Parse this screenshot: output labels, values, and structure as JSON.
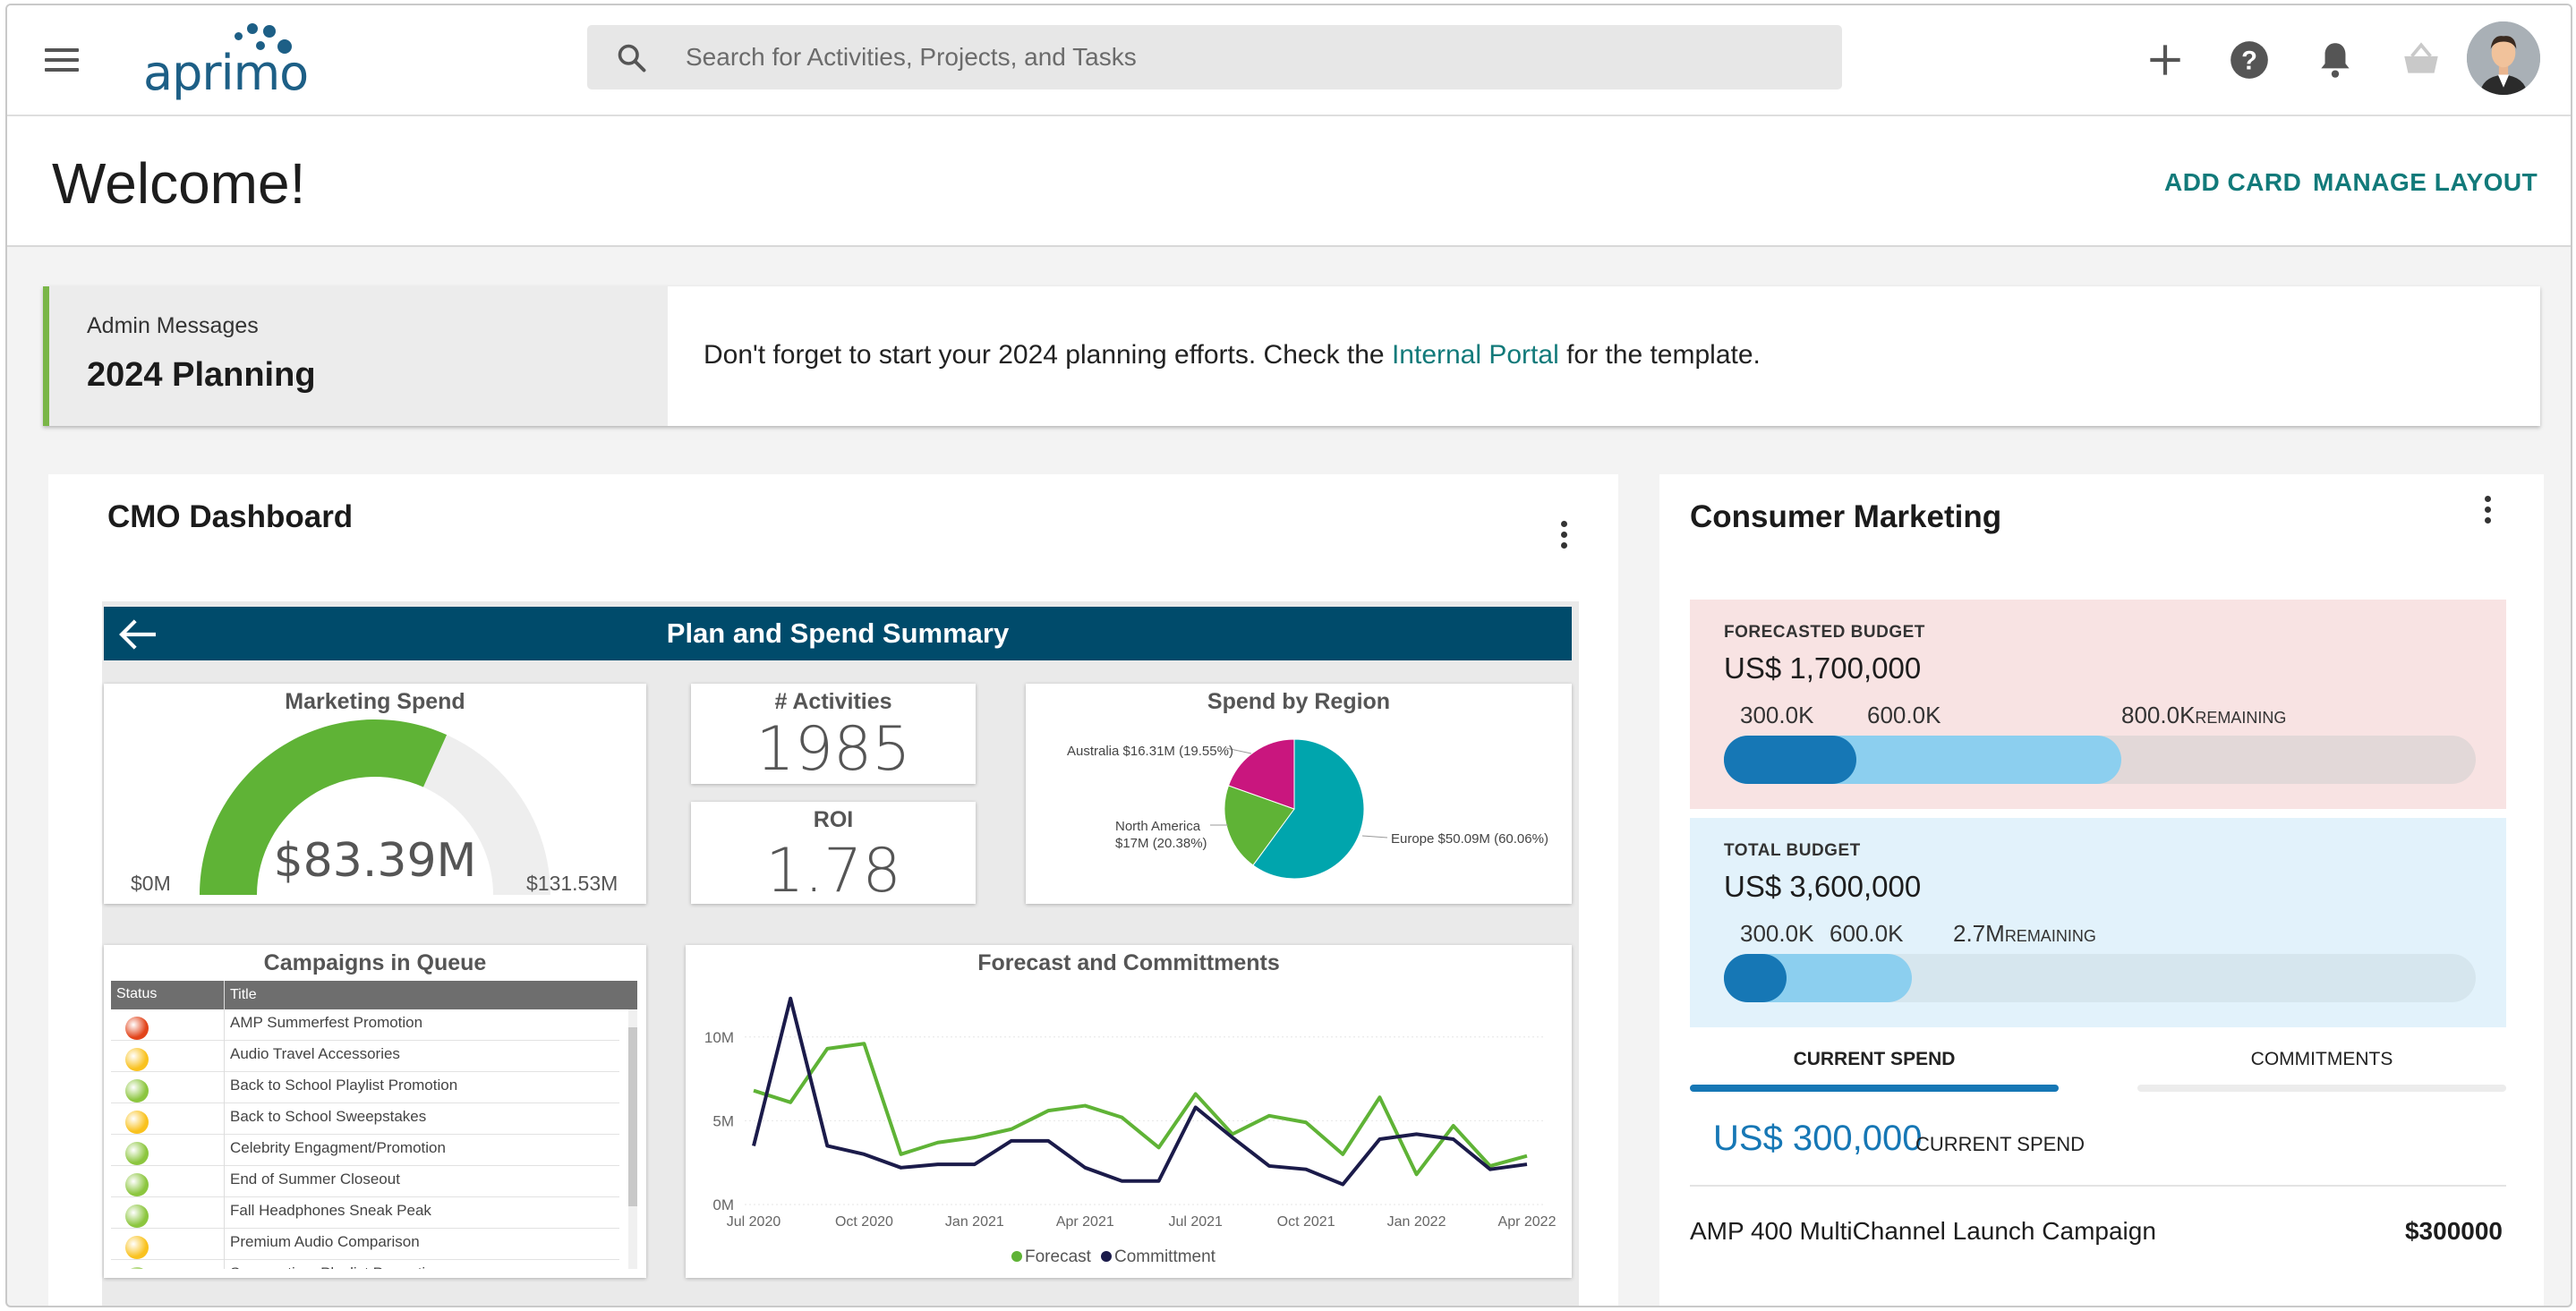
{
  "topbar": {
    "logo": "aprimo",
    "search_placeholder": "Search for Activities, Projects, and Tasks",
    "icons": [
      "menu-icon",
      "search-icon",
      "plus-icon",
      "help-icon",
      "bell-icon",
      "basket-icon",
      "avatar"
    ]
  },
  "header": {
    "title": "Welcome!",
    "add_card": "ADD CARD",
    "manage_layout": "MANAGE LAYOUT"
  },
  "admin": {
    "label": "Admin Messages",
    "title": "2024 Planning",
    "message_before": "Don't forget to start your 2024 planning efforts. Check the ",
    "link": "Internal Portal",
    "message_after": " for the template.",
    "accent": "#7ab648"
  },
  "cmo": {
    "title": "CMO Dashboard",
    "report": {
      "title": "Plan and Spend Summary",
      "header_color": "#004b6b",
      "marketing_spend": {
        "title": "Marketing Spend",
        "value": "$83.39M",
        "min": "$0M",
        "max": "$131.53M",
        "fraction": 0.634
      },
      "activities": {
        "title": "# Activities",
        "value": "1985"
      },
      "roi": {
        "title": "ROI",
        "value": "1.78"
      },
      "region": {
        "title": "Spend by Region",
        "slices": [
          {
            "label": "Europe $50.09M (60.06%)",
            "share": 60.06,
            "color": "#00a5ad"
          },
          {
            "label": "North America $17M (20.38%)",
            "share": 20.38,
            "color": "#5fb336"
          },
          {
            "label": "Australia $16.31M (19.55%)",
            "share": 19.55,
            "color": "#c9167e"
          }
        ],
        "label_north_america_line1": "North America",
        "label_north_america_line2": "$17M (20.38%)"
      },
      "campaigns": {
        "title": "Campaigns in Queue",
        "col_status": "Status",
        "col_title": "Title",
        "rows": [
          {
            "status": "red",
            "title": "AMP Summerfest Promotion"
          },
          {
            "status": "yellow",
            "title": "Audio Travel Accessories"
          },
          {
            "status": "green",
            "title": "Back to School Playlist Promotion"
          },
          {
            "status": "yellow",
            "title": "Back to School Sweepstakes"
          },
          {
            "status": "green",
            "title": "Celebrity Engagment/Promotion"
          },
          {
            "status": "green",
            "title": "End of Summer Closeout"
          },
          {
            "status": "green",
            "title": "Fall Headphones Sneak Peak"
          },
          {
            "status": "yellow",
            "title": "Premium Audio Comparison"
          },
          {
            "status": "green",
            "title": "Summertime Playlist Promotion"
          }
        ]
      }
    }
  },
  "chart_data": {
    "type": "line",
    "title": "Forecast and Committments",
    "x_ticks": [
      "Jul 2020",
      "Oct 2020",
      "Jan 2021",
      "Apr 2021",
      "Jul 2021",
      "Oct 2021",
      "Jan 2022",
      "Apr 2022"
    ],
    "y_ticks": [
      "0M",
      "5M",
      "10M"
    ],
    "ylim": [
      0,
      12.5
    ],
    "grid": true,
    "legend": "bottom",
    "series": [
      {
        "name": "Forecast",
        "color": "#5fb336",
        "values": [
          6.8,
          6.1,
          9.3,
          9.6,
          3.0,
          3.7,
          4.0,
          4.5,
          5.6,
          5.9,
          5.2,
          3.4,
          6.6,
          4.2,
          5.3,
          4.9,
          3.0,
          6.4,
          1.8,
          4.7,
          2.3,
          2.9
        ]
      },
      {
        "name": "Committment",
        "color": "#1b1b4a",
        "values": [
          3.5,
          12.3,
          3.5,
          3.0,
          2.2,
          2.4,
          2.4,
          3.8,
          3.8,
          2.2,
          1.4,
          1.4,
          5.8,
          4.0,
          2.3,
          2.1,
          1.2,
          3.9,
          4.2,
          3.9,
          2.1,
          2.4
        ]
      }
    ]
  },
  "consumer": {
    "title": "Consumer Marketing",
    "forecasted": {
      "label": "FORECASTED BUDGET",
      "value": "US$ 1,700,000",
      "mark1": "300.0K",
      "mark2": "600.0K",
      "mark3": "800.0K",
      "remaining": "REMAINING",
      "current_fraction": 0.176,
      "committed_fraction": 0.529,
      "bg": "#f8e3e3",
      "track": "#e2d8d8"
    },
    "total": {
      "label": "TOTAL BUDGET",
      "value": "US$ 3,600,000",
      "mark1": "300.0K",
      "mark2": "600.0K",
      "mark3": "2.7M",
      "remaining": "REMAINING",
      "current_fraction": 0.083,
      "committed_fraction": 0.25,
      "bg": "#e2f2fb",
      "track": "#d6e6ee"
    },
    "tabs": {
      "current": "CURRENT SPEND",
      "commitments": "COMMITMENTS"
    },
    "current_spend_amount": "US$ 300,000",
    "current_spend_label": "CURRENT SPEND",
    "items": [
      {
        "name": "AMP 400 MultiChannel Launch Campaign",
        "amount": "$300000"
      }
    ]
  }
}
